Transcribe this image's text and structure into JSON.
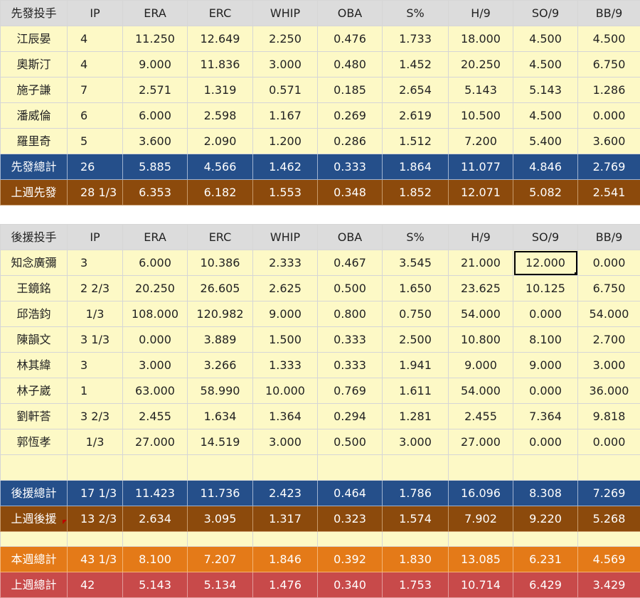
{
  "columns": [
    "IP",
    "ERA",
    "ERC",
    "WHIP",
    "OBA",
    "S%",
    "H/9",
    "SO/9",
    "BB/9"
  ],
  "starters": {
    "header_label": "先發投手",
    "rows": [
      {
        "name": "江辰晏",
        "stats": [
          "4",
          "11.250",
          "12.649",
          "2.250",
          "0.476",
          "1.733",
          "18.000",
          "4.500",
          "4.500"
        ]
      },
      {
        "name": "奧斯汀",
        "stats": [
          "4",
          "9.000",
          "11.836",
          "3.000",
          "0.480",
          "1.452",
          "20.250",
          "4.500",
          "6.750"
        ]
      },
      {
        "name": "施子謙",
        "stats": [
          "7",
          "2.571",
          "1.319",
          "0.571",
          "0.185",
          "2.654",
          "5.143",
          "5.143",
          "1.286"
        ]
      },
      {
        "name": "潘威倫",
        "stats": [
          "6",
          "6.000",
          "2.598",
          "1.167",
          "0.269",
          "2.619",
          "10.500",
          "4.500",
          "0.000"
        ]
      },
      {
        "name": "羅里奇",
        "stats": [
          "5",
          "3.600",
          "2.090",
          "1.200",
          "0.286",
          "1.512",
          "7.200",
          "5.400",
          "3.600"
        ]
      }
    ],
    "total": {
      "name": "先發總計",
      "stats": [
        "26",
        "5.885",
        "4.566",
        "1.462",
        "0.333",
        "1.864",
        "11.077",
        "4.846",
        "2.769"
      ]
    },
    "last_week": {
      "name": "上週先發",
      "stats": [
        "28 1/3",
        "6.353",
        "6.182",
        "1.553",
        "0.348",
        "1.852",
        "12.071",
        "5.082",
        "2.541"
      ]
    }
  },
  "relievers": {
    "header_label": "後援投手",
    "rows": [
      {
        "name": "知念廣彌",
        "stats": [
          "3",
          "6.000",
          "10.386",
          "2.333",
          "0.467",
          "3.545",
          "21.000",
          "12.000",
          "0.000"
        ]
      },
      {
        "name": "王鏡銘",
        "stats": [
          "2 2/3",
          "20.250",
          "26.605",
          "2.625",
          "0.500",
          "1.650",
          "23.625",
          "10.125",
          "6.750"
        ]
      },
      {
        "name": "邱浩鈞",
        "stats": [
          "1/3",
          "108.000",
          "120.982",
          "9.000",
          "0.800",
          "0.750",
          "54.000",
          "0.000",
          "54.000"
        ]
      },
      {
        "name": "陳韻文",
        "stats": [
          "3 1/3",
          "0.000",
          "3.889",
          "1.500",
          "0.333",
          "2.500",
          "10.800",
          "8.100",
          "2.700"
        ]
      },
      {
        "name": "林其緯",
        "stats": [
          "3",
          "3.000",
          "3.266",
          "1.333",
          "0.333",
          "1.941",
          "9.000",
          "9.000",
          "3.000"
        ]
      },
      {
        "name": "林子崴",
        "stats": [
          "1",
          "63.000",
          "58.990",
          "10.000",
          "0.769",
          "1.611",
          "54.000",
          "0.000",
          "36.000"
        ]
      },
      {
        "name": "劉軒荅",
        "stats": [
          "3 2/3",
          "2.455",
          "1.634",
          "1.364",
          "0.294",
          "1.281",
          "2.455",
          "7.364",
          "9.818"
        ]
      },
      {
        "name": "郭恆孝",
        "stats": [
          "1/3",
          "27.000",
          "14.519",
          "3.000",
          "0.500",
          "3.000",
          "27.000",
          "0.000",
          "0.000"
        ]
      }
    ],
    "total": {
      "name": "後援總計",
      "stats": [
        "17 1/3",
        "11.423",
        "11.736",
        "2.423",
        "0.464",
        "1.786",
        "16.096",
        "8.308",
        "7.269"
      ]
    },
    "last_week": {
      "name": "上週後援",
      "stats": [
        "13 2/3",
        "2.634",
        "3.095",
        "1.317",
        "0.323",
        "1.574",
        "7.902",
        "9.220",
        "5.268"
      ]
    }
  },
  "week_total": {
    "name": "本週總計",
    "stats": [
      "43 1/3",
      "8.100",
      "7.207",
      "1.846",
      "0.392",
      "1.830",
      "13.085",
      "6.231",
      "4.569"
    ]
  },
  "last_week_total": {
    "name": "上週總計",
    "stats": [
      "42",
      "5.143",
      "5.134",
      "1.476",
      "0.340",
      "1.753",
      "10.714",
      "6.429",
      "3.429"
    ]
  },
  "colors": {
    "data_row": "#fdf9c6",
    "header_row": "#dcdcdc",
    "total_row": "#254f8a",
    "last_week_row": "#8c4a0c",
    "week_total_row": "#e47a18",
    "last_week_total_row": "#c84a4a"
  }
}
